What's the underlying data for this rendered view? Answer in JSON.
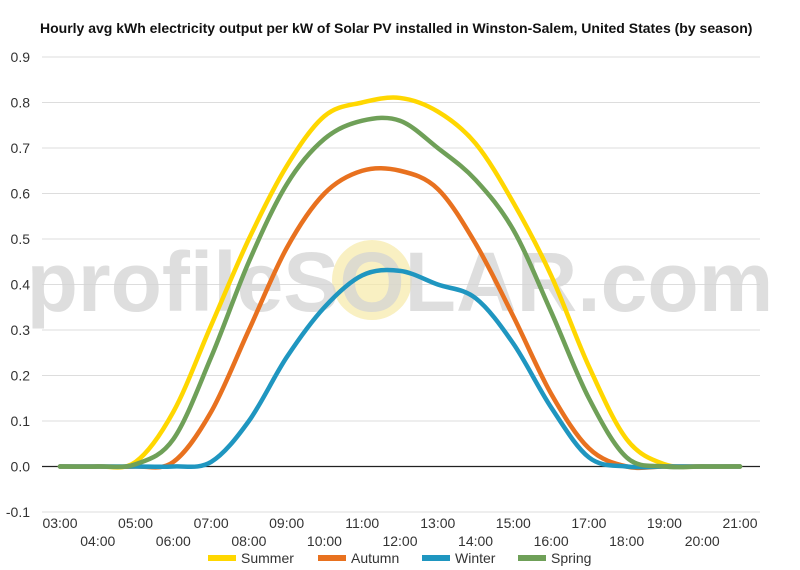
{
  "watermark": "profileSOLAR.com",
  "chart_data": {
    "type": "line",
    "title": "Hourly avg kWh electricity output per kW of Solar PV installed in Winston-Salem, United States (by season)",
    "xlabel": "",
    "ylabel": "",
    "ylim": [
      -0.1,
      0.9
    ],
    "yticks": [
      "-0.1",
      "0.0",
      "0.1",
      "0.2",
      "0.3",
      "0.4",
      "0.5",
      "0.6",
      "0.7",
      "0.8",
      "0.9"
    ],
    "categories": [
      "03:00",
      "04:00",
      "05:00",
      "06:00",
      "07:00",
      "08:00",
      "09:00",
      "10:00",
      "11:00",
      "12:00",
      "13:00",
      "14:00",
      "15:00",
      "16:00",
      "17:00",
      "18:00",
      "19:00",
      "20:00",
      "21:00"
    ],
    "grid": true,
    "legend": "bottom",
    "series": [
      {
        "name": "Summer",
        "color": "#FFD700",
        "values": [
          0,
          0,
          0.01,
          0.12,
          0.31,
          0.5,
          0.66,
          0.77,
          0.8,
          0.81,
          0.78,
          0.71,
          0.58,
          0.42,
          0.22,
          0.06,
          0.005,
          0,
          0
        ]
      },
      {
        "name": "Autumn",
        "color": "#E8711F",
        "values": [
          0,
          0,
          0,
          0.01,
          0.12,
          0.3,
          0.48,
          0.6,
          0.65,
          0.65,
          0.61,
          0.49,
          0.33,
          0.16,
          0.04,
          0,
          0,
          0,
          0
        ]
      },
      {
        "name": "Winter",
        "color": "#1F96C0",
        "values": [
          0,
          0,
          0,
          0,
          0.01,
          0.1,
          0.24,
          0.35,
          0.42,
          0.43,
          0.4,
          0.37,
          0.27,
          0.13,
          0.02,
          0,
          0,
          0,
          0
        ]
      },
      {
        "name": "Spring",
        "color": "#6FA058",
        "values": [
          0,
          0,
          0.005,
          0.06,
          0.24,
          0.45,
          0.62,
          0.72,
          0.76,
          0.76,
          0.7,
          0.63,
          0.52,
          0.34,
          0.15,
          0.02,
          0,
          0,
          0
        ]
      }
    ]
  }
}
